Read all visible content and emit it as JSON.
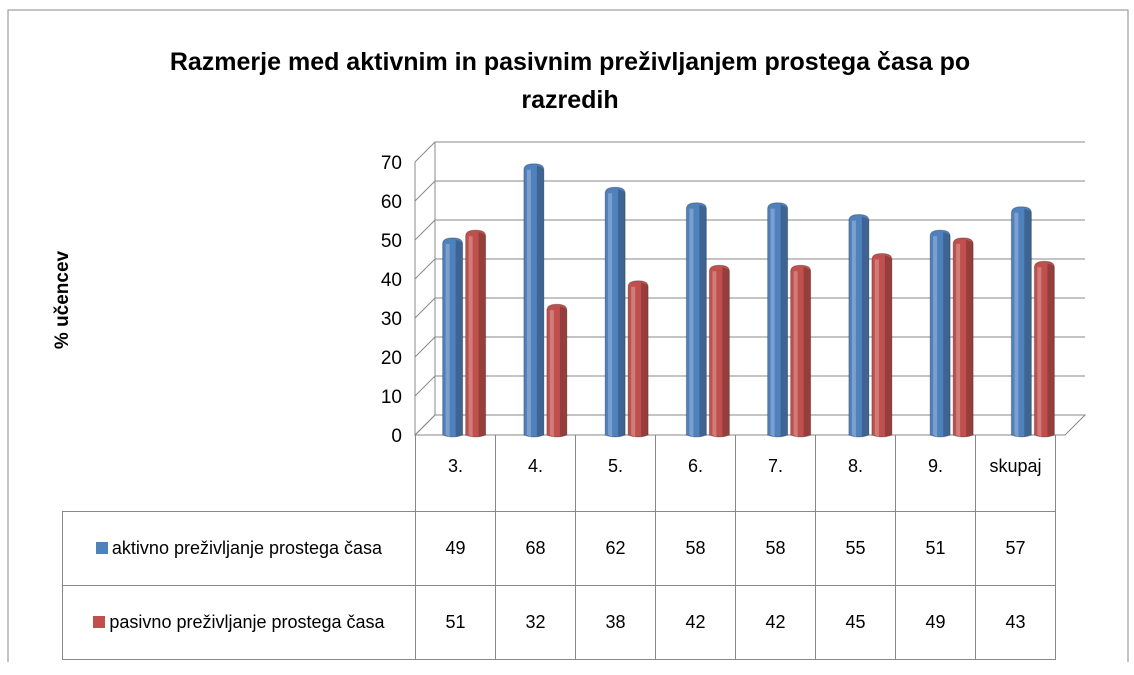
{
  "chart_data": {
    "type": "bar3d",
    "title": "Razmerje med aktivnim in pasivnim preživljanjem prostega časa po razredih",
    "y_label": "% učencev",
    "categories": [
      "3.",
      "4.",
      "5.",
      "6.",
      "7.",
      "8.",
      "9.",
      "skupaj"
    ],
    "series": [
      {
        "name": "aktivno preživljanje prostega časa",
        "color": "#4f81bd",
        "values": [
          49,
          68,
          62,
          58,
          58,
          55,
          51,
          57
        ]
      },
      {
        "name": "pasivno preživljanje prostega časa",
        "color": "#c0504d",
        "values": [
          51,
          32,
          38,
          42,
          42,
          45,
          49,
          43
        ]
      }
    ],
    "ylim": [
      0,
      70
    ],
    "yticks": [
      0,
      10,
      20,
      30,
      40,
      50,
      60,
      70
    ],
    "grid": true,
    "data_table": true
  }
}
